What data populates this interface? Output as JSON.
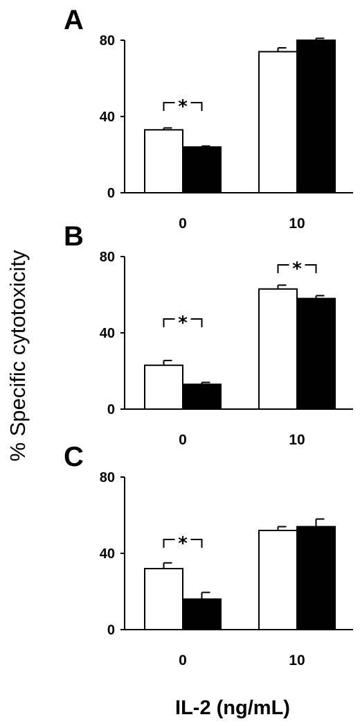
{
  "figure": {
    "ylabel": "% Specific cytotoxicity",
    "xlabel": "IL-2 (ng/mL)"
  },
  "chart_data": [
    {
      "type": "bar",
      "panel": "A",
      "categories": [
        "0",
        "10"
      ],
      "series": [
        {
          "fill": "open",
          "color": "#ffffff",
          "values": [
            33,
            74
          ],
          "errors": [
            1,
            2
          ]
        },
        {
          "fill": "solid",
          "color": "#000000",
          "values": [
            24,
            80
          ],
          "errors": [
            0.5,
            1
          ]
        }
      ],
      "yticks": [
        "0",
        "40",
        "80"
      ],
      "ylim": [
        0,
        80
      ],
      "significance": [
        {
          "category": "0",
          "label": "*"
        }
      ]
    },
    {
      "type": "bar",
      "panel": "B",
      "categories": [
        "0",
        "10"
      ],
      "series": [
        {
          "fill": "open",
          "color": "#ffffff",
          "values": [
            23,
            63
          ],
          "errors": [
            2.5,
            2
          ]
        },
        {
          "fill": "solid",
          "color": "#000000",
          "values": [
            13,
            58
          ],
          "errors": [
            1,
            1.5
          ]
        }
      ],
      "yticks": [
        "0",
        "40",
        "80"
      ],
      "ylim": [
        0,
        80
      ],
      "significance": [
        {
          "category": "0",
          "label": "*"
        },
        {
          "category": "10",
          "label": "*"
        }
      ]
    },
    {
      "type": "bar",
      "panel": "C",
      "categories": [
        "0",
        "10"
      ],
      "series": [
        {
          "fill": "open",
          "color": "#ffffff",
          "values": [
            32,
            52
          ],
          "errors": [
            3,
            2
          ]
        },
        {
          "fill": "solid",
          "color": "#000000",
          "values": [
            16,
            54
          ],
          "errors": [
            3.5,
            4
          ]
        }
      ],
      "yticks": [
        "0",
        "40",
        "80"
      ],
      "ylim": [
        0,
        80
      ],
      "significance": [
        {
          "category": "0",
          "label": "*"
        }
      ]
    }
  ]
}
